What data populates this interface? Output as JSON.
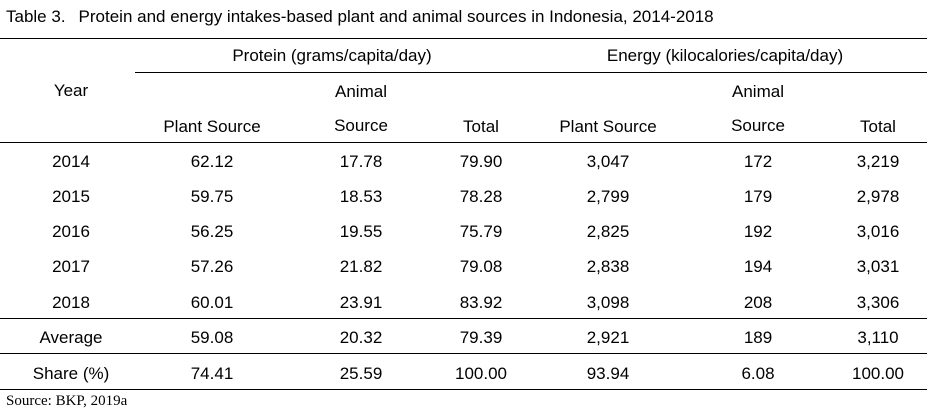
{
  "table": {
    "title_number": "Table 3.",
    "title": "Protein and energy intakes-based plant and animal sources in Indonesia, 2014-2018",
    "header": {
      "year": "Year",
      "protein_group": "Protein (grams/capita/day)",
      "energy_group": "Energy (kilocalories/capita/day)",
      "animal_top": "Animal",
      "columns": [
        "Plant Source",
        "Source",
        "Total",
        "Plant Source",
        "Source",
        "Total"
      ]
    },
    "rows": [
      {
        "label": "2014",
        "values": [
          "62.12",
          "17.78",
          "79.90",
          "3,047",
          "172",
          "3,219"
        ]
      },
      {
        "label": "2015",
        "values": [
          "59.75",
          "18.53",
          "78.28",
          "2,799",
          "179",
          "2,978"
        ]
      },
      {
        "label": "2016",
        "values": [
          "56.25",
          "19.55",
          "75.79",
          "2,825",
          "192",
          "3,016"
        ]
      },
      {
        "label": "2017",
        "values": [
          "57.26",
          "21.82",
          "79.08",
          "2,838",
          "194",
          "3,031"
        ]
      },
      {
        "label": "2018",
        "values": [
          "60.01",
          "23.91",
          "83.92",
          "3,098",
          "208",
          "3,306"
        ]
      },
      {
        "label": "Average",
        "values": [
          "59.08",
          "20.32",
          "79.39",
          "2,921",
          "189",
          "3,110"
        ]
      },
      {
        "label": "Share (%)",
        "values": [
          "74.41",
          "25.59",
          "100.00",
          "93.94",
          "6.08",
          "100.00"
        ]
      }
    ],
    "source": "Source: BKP, 2019a"
  }
}
